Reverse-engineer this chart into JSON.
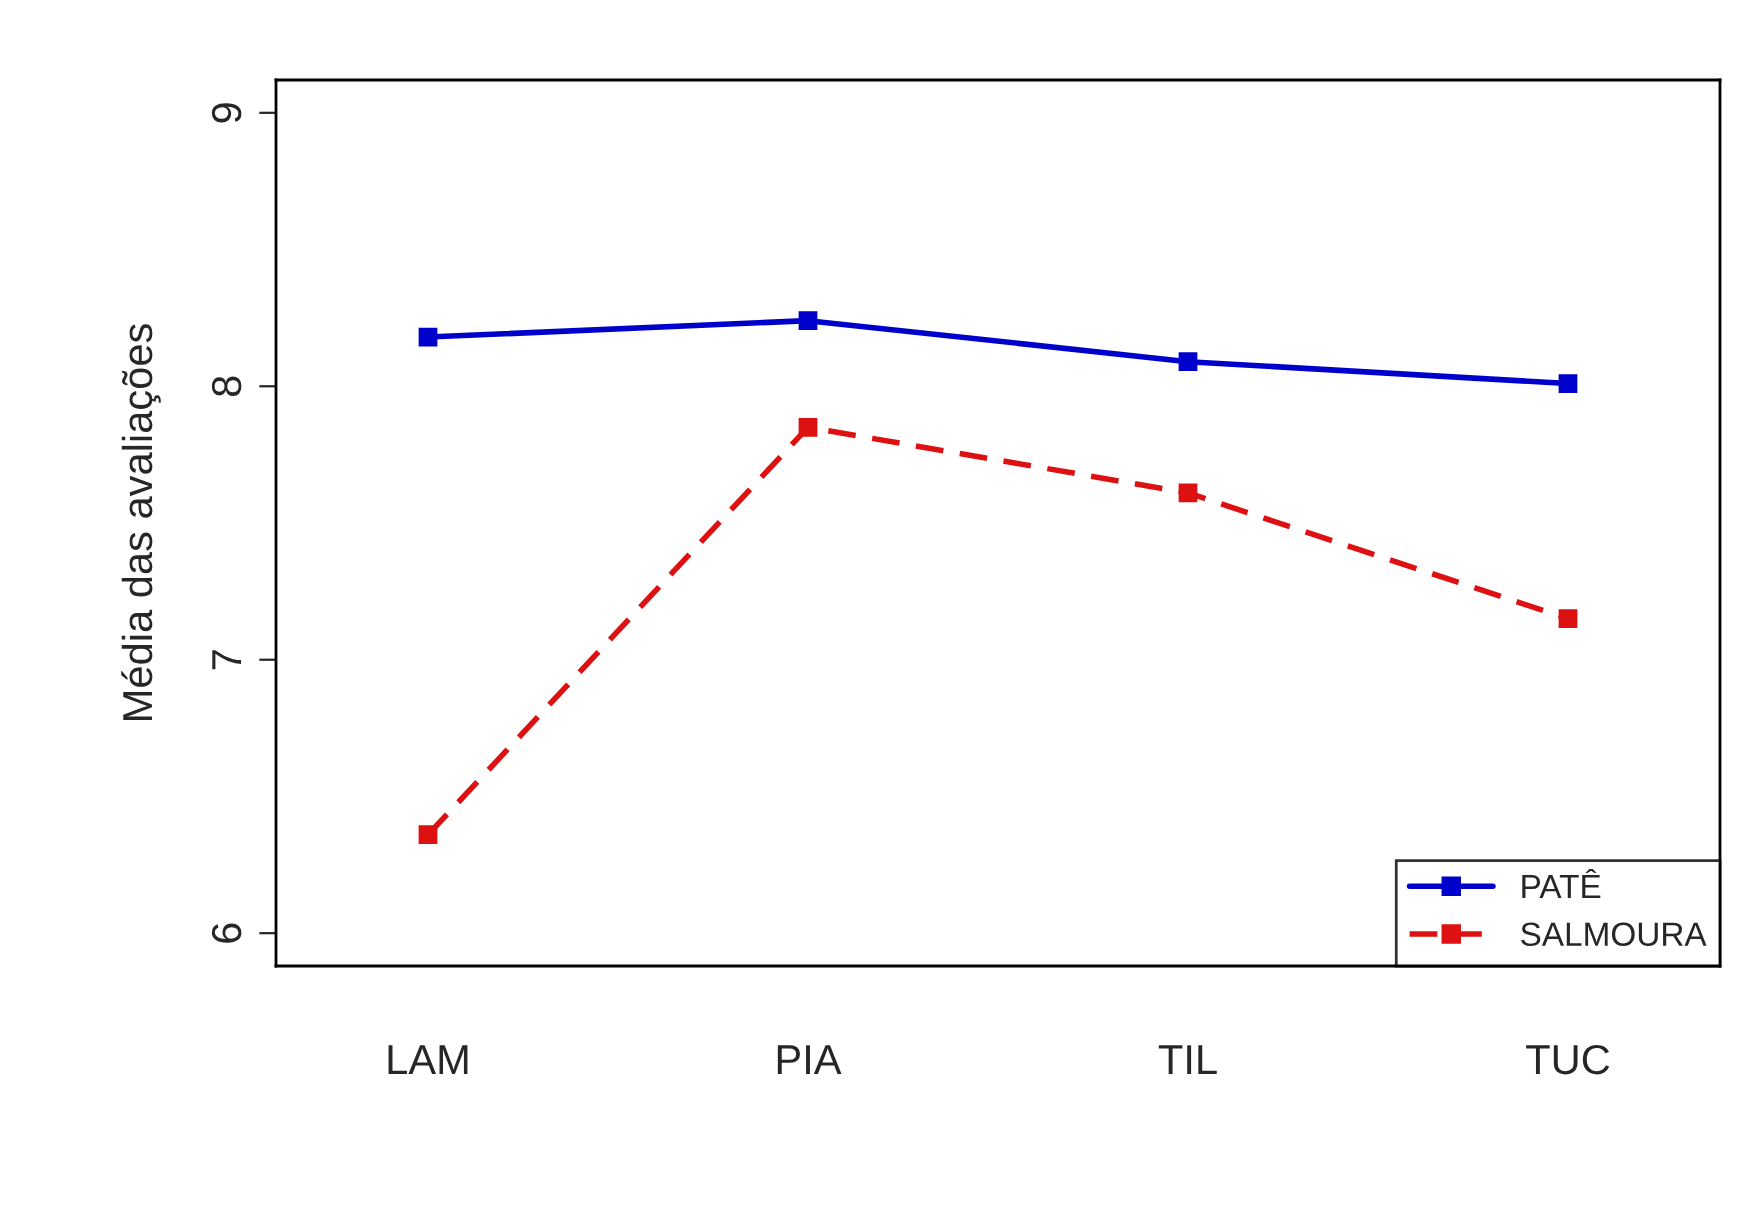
{
  "chart_data": {
    "type": "line",
    "ylabel": "Média das avaliações",
    "categories": [
      "LAM",
      "PIA",
      "TIL",
      "TUC"
    ],
    "series": [
      {
        "name": "PATÊ",
        "color": "#0000cc",
        "values": [
          8.18,
          8.24,
          8.09,
          8.01
        ],
        "line_style": "solid"
      },
      {
        "name": "SALMOURA",
        "color": "#dd1111",
        "values": [
          6.36,
          7.85,
          7.61,
          7.15
        ],
        "line_style": "dashed"
      }
    ],
    "ylim": [
      5.88,
      9.12
    ],
    "yticks": [
      6,
      7,
      8,
      9
    ],
    "marker": "square",
    "legend": "bottom right",
    "grid": false
  }
}
